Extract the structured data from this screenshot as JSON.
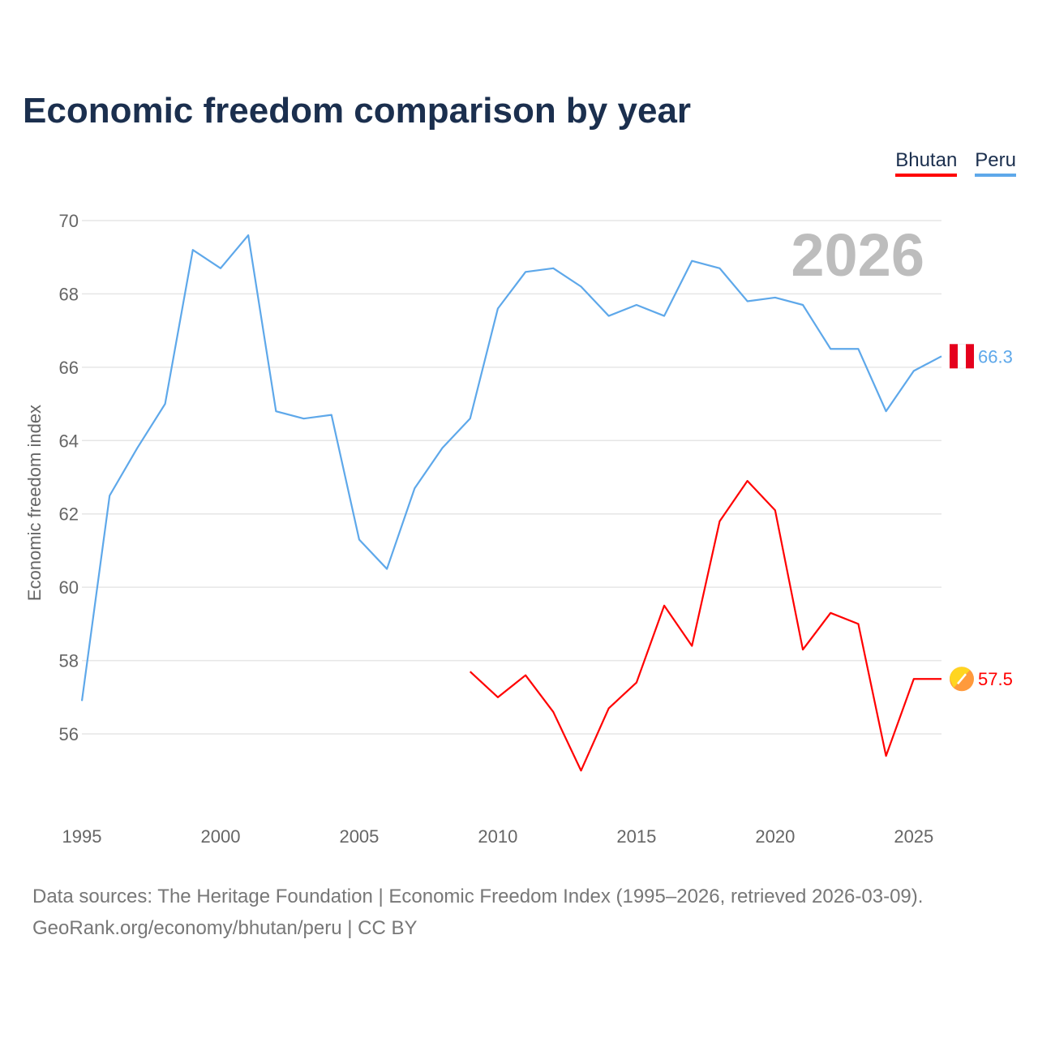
{
  "chart_data": {
    "type": "line",
    "title": "Economic freedom comparison by year",
    "xlabel": "",
    "ylabel": "Economic freedom index",
    "xlim": [
      1995,
      2026
    ],
    "ylim": [
      53.9,
      70
    ],
    "yticks": [
      56,
      58,
      60,
      62,
      64,
      66,
      68,
      70
    ],
    "xticks": [
      1995,
      2000,
      2005,
      2010,
      2015,
      2020,
      2025
    ],
    "grid": true,
    "legend_placement": "top-right",
    "current_year_label": "2026",
    "series": [
      {
        "name": "Bhutan",
        "color": "#ff0000",
        "end_label": "57.5",
        "x": [
          2009,
          2010,
          2011,
          2012,
          2013,
          2014,
          2015,
          2016,
          2017,
          2018,
          2019,
          2020,
          2021,
          2022,
          2023,
          2024,
          2025,
          2026
        ],
        "values": [
          57.7,
          57.0,
          57.6,
          56.6,
          55.0,
          56.7,
          57.4,
          59.5,
          58.4,
          61.8,
          62.9,
          62.1,
          58.3,
          59.3,
          59.0,
          55.4,
          57.5,
          57.5
        ]
      },
      {
        "name": "Peru",
        "color": "#5ea8ea",
        "end_label": "66.3",
        "x": [
          1995,
          1996,
          1997,
          1998,
          1999,
          2000,
          2001,
          2002,
          2003,
          2004,
          2005,
          2006,
          2007,
          2008,
          2009,
          2010,
          2011,
          2012,
          2013,
          2014,
          2015,
          2016,
          2017,
          2018,
          2019,
          2020,
          2021,
          2022,
          2023,
          2024,
          2025,
          2026
        ],
        "values": [
          56.9,
          62.5,
          63.8,
          65.0,
          69.2,
          68.7,
          69.6,
          64.8,
          64.6,
          64.7,
          61.3,
          60.5,
          62.7,
          63.8,
          64.6,
          67.6,
          68.6,
          68.7,
          68.2,
          67.4,
          67.7,
          67.4,
          68.9,
          68.7,
          67.8,
          67.9,
          67.7,
          66.5,
          66.5,
          64.8,
          65.9,
          66.3
        ]
      }
    ]
  },
  "footer": {
    "line1": "Data sources: The Heritage Foundation | Economic Freedom Index (1995–2026, retrieved 2026-03-09).",
    "line2": "GeoRank.org/economy/bhutan/peru | CC BY"
  }
}
